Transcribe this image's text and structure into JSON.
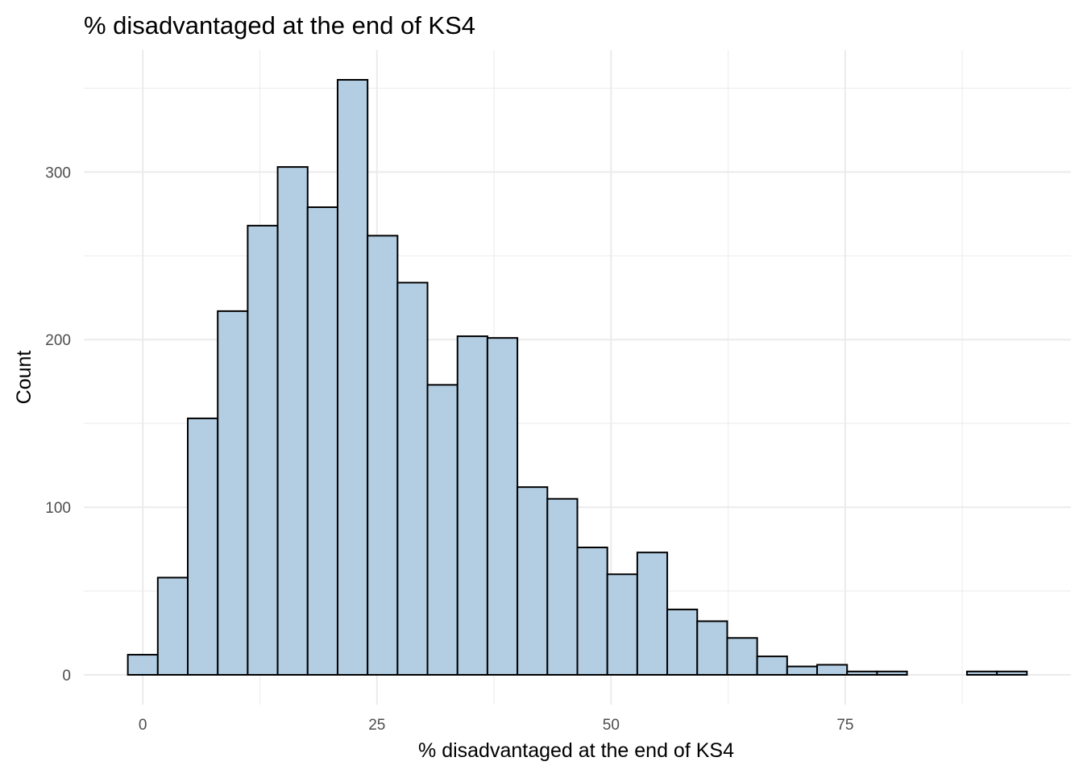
{
  "chart_data": {
    "type": "bar",
    "title": "% disadvantaged at the end of KS4",
    "xlabel": "% disadvantaged at the end of KS4",
    "ylabel": "Count",
    "bin_width": 3.2,
    "bins": [
      {
        "x0": -1.6,
        "x1": 1.6,
        "count": 12
      },
      {
        "x0": 1.6,
        "x1": 4.8,
        "count": 58
      },
      {
        "x0": 4.8,
        "x1": 8.0,
        "count": 153
      },
      {
        "x0": 8.0,
        "x1": 11.2,
        "count": 217
      },
      {
        "x0": 11.2,
        "x1": 14.4,
        "count": 268
      },
      {
        "x0": 14.4,
        "x1": 17.6,
        "count": 303
      },
      {
        "x0": 17.6,
        "x1": 20.8,
        "count": 279
      },
      {
        "x0": 20.8,
        "x1": 24.0,
        "count": 355
      },
      {
        "x0": 24.0,
        "x1": 27.2,
        "count": 262
      },
      {
        "x0": 27.2,
        "x1": 30.4,
        "count": 234
      },
      {
        "x0": 30.4,
        "x1": 33.6,
        "count": 173
      },
      {
        "x0": 33.6,
        "x1": 36.8,
        "count": 202
      },
      {
        "x0": 36.8,
        "x1": 40.0,
        "count": 201
      },
      {
        "x0": 40.0,
        "x1": 43.2,
        "count": 112
      },
      {
        "x0": 43.2,
        "x1": 46.4,
        "count": 105
      },
      {
        "x0": 46.4,
        "x1": 49.6,
        "count": 76
      },
      {
        "x0": 49.6,
        "x1": 52.8,
        "count": 60
      },
      {
        "x0": 52.8,
        "x1": 56.0,
        "count": 73
      },
      {
        "x0": 56.0,
        "x1": 59.2,
        "count": 39
      },
      {
        "x0": 59.2,
        "x1": 62.4,
        "count": 32
      },
      {
        "x0": 62.4,
        "x1": 65.6,
        "count": 22
      },
      {
        "x0": 65.6,
        "x1": 68.8,
        "count": 11
      },
      {
        "x0": 68.8,
        "x1": 72.0,
        "count": 5
      },
      {
        "x0": 72.0,
        "x1": 75.2,
        "count": 6
      },
      {
        "x0": 75.2,
        "x1": 78.4,
        "count": 2
      },
      {
        "x0": 78.4,
        "x1": 81.6,
        "count": 2
      },
      {
        "x0": 81.6,
        "x1": 84.8,
        "count": 0
      },
      {
        "x0": 84.8,
        "x1": 88.0,
        "count": 0
      },
      {
        "x0": 88.0,
        "x1": 91.2,
        "count": 2
      },
      {
        "x0": 91.2,
        "x1": 94.4,
        "count": 2
      }
    ],
    "xlim": [
      -6.3,
      99.1
    ],
    "ylim": [
      -17.8,
      372.8
    ],
    "x_ticks": [
      0,
      25,
      50,
      75
    ],
    "x_tick_labels": [
      "0",
      "25",
      "50",
      "75"
    ],
    "y_ticks": [
      0,
      100,
      200,
      300
    ],
    "y_tick_labels": [
      "0",
      "100",
      "200",
      "300"
    ],
    "grid": true,
    "bar_fill": "#b3cde3",
    "bar_stroke": "#000000",
    "grid_color": "#ebebeb"
  }
}
